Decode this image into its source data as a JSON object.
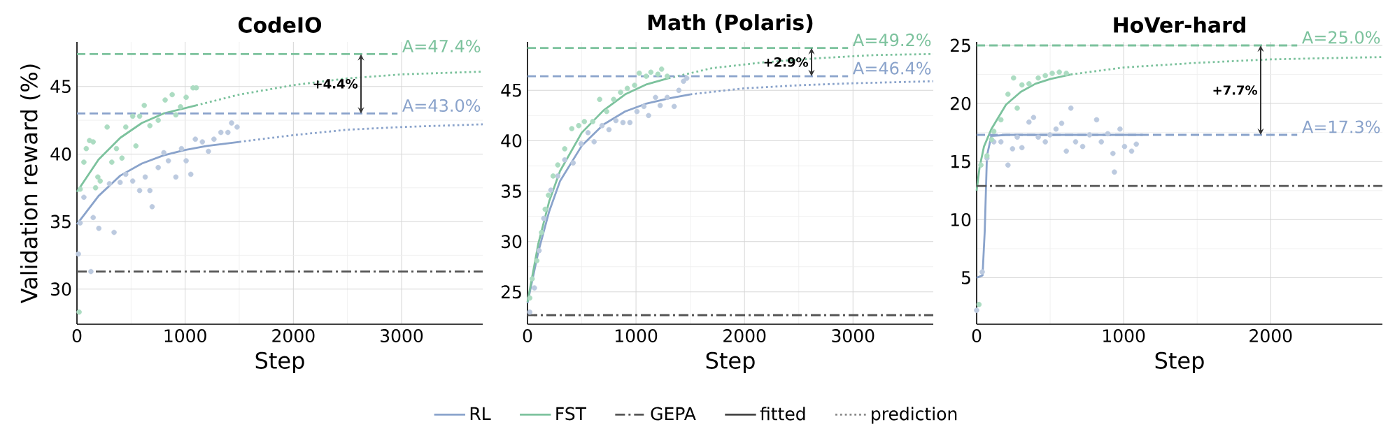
{
  "chart_data": [
    {
      "type": "scatter",
      "title": "CodeIO",
      "xlabel": "Step",
      "ylabel": "Validation reward (%)",
      "xlim": [
        0,
        3750
      ],
      "ylim": [
        27.4,
        48.3
      ],
      "xticks": [
        0,
        1000,
        2000,
        3000
      ],
      "yticks": [
        30,
        35,
        40,
        45
      ],
      "grid": true,
      "legend": "bottom",
      "series": [
        {
          "type": "scatter",
          "marker": "circle",
          "color": "#bccadf",
          "x": [
            13,
            30,
            64,
            129,
            150,
            202,
            300,
            343,
            399,
            451,
            515,
            579,
            631,
            674,
            695,
            751,
            803,
            845,
            914,
            966,
            1009,
            1052,
            1094,
            1159,
            1215,
            1266,
            1330,
            1395,
            1429,
            1480
          ],
          "values": [
            32.6,
            34.9,
            36.8,
            31.3,
            35.3,
            34.5,
            37.8,
            34.2,
            37.9,
            38.5,
            38.0,
            37.3,
            38.3,
            37.3,
            36.1,
            39.0,
            40.1,
            39.5,
            38.3,
            40.4,
            39.5,
            38.5,
            41.1,
            40.9,
            40.2,
            41.1,
            41.6,
            41.6,
            42.3,
            42.0
          ]
        },
        {
          "type": "scatter",
          "marker": "circle",
          "color": "#acdcc2",
          "x": [
            20,
            30,
            64,
            86,
            116,
            150,
            172,
            193,
            215,
            279,
            322,
            365,
            416,
            451,
            515,
            545,
            579,
            622,
            674,
            751,
            815,
            880,
            914,
            957,
            1009,
            1073,
            1103
          ],
          "values": [
            28.3,
            37.4,
            39.4,
            40.4,
            41.0,
            40.9,
            37.5,
            38.3,
            38.0,
            42.0,
            39.4,
            40.4,
            39.7,
            42.0,
            42.8,
            40.6,
            42.8,
            43.6,
            42.1,
            42.5,
            44.0,
            44.4,
            42.9,
            43.5,
            44.2,
            44.9,
            44.9
          ]
        },
        {
          "type": "line",
          "name": "RL",
          "marker": "none",
          "line_style": "solid",
          "color": "#8aa3cb",
          "x": [
            0,
            200,
            400,
            600,
            800,
            1000,
            1200,
            1500
          ],
          "values": [
            34.8,
            36.9,
            38.4,
            39.3,
            39.9,
            40.3,
            40.6,
            40.9
          ]
        },
        {
          "type": "line",
          "name": "FST",
          "marker": "none",
          "line_style": "solid",
          "color": "#7cc29d",
          "x": [
            0,
            200,
            400,
            600,
            800,
            1100
          ],
          "values": [
            37.2,
            39.6,
            41.2,
            42.3,
            43.0,
            43.6
          ]
        },
        {
          "type": "line",
          "marker": "none",
          "line_style": "dotted",
          "color": "#8aa3cb",
          "x": [
            1500,
            2000,
            2500,
            3000,
            3750
          ],
          "values": [
            40.9,
            41.4,
            41.8,
            42.0,
            42.2
          ]
        },
        {
          "type": "line",
          "marker": "none",
          "line_style": "dotted",
          "color": "#7cc29d",
          "x": [
            1100,
            1500,
            2000,
            2500,
            3000,
            3750
          ],
          "values": [
            43.6,
            44.4,
            45.1,
            45.6,
            45.9,
            46.1
          ]
        },
        {
          "type": "line",
          "name": "GEPA",
          "marker": "none",
          "line_style": "dashdot",
          "color": "#555555",
          "x": [
            0,
            3750
          ],
          "values": [
            31.3,
            31.3
          ]
        },
        {
          "type": "line",
          "name": "fitted",
          "marker": "none",
          "line_style": "solid",
          "color": "#444444"
        },
        {
          "type": "line",
          "name": "prediction",
          "marker": "none",
          "line_style": "dotted",
          "color": "#888888"
        }
      ],
      "ref_lines": [
        {
          "axis": "y",
          "value": 47.4,
          "label": "A=47.4%",
          "color": "#7cc29d",
          "line_style": "dashed"
        },
        {
          "axis": "y",
          "value": 43.0,
          "label": "A=43.0%",
          "color": "#8aa3cb",
          "line_style": "dashed"
        }
      ],
      "annotations": [
        "+4.4%"
      ]
    },
    {
      "type": "scatter",
      "title": "Math (Polaris)",
      "xlabel": "Step",
      "xlim": [
        0,
        3740
      ],
      "ylim": [
        21.8,
        49.8
      ],
      "xticks": [
        0,
        1000,
        2000,
        3000
      ],
      "yticks": [
        25,
        30,
        35,
        40,
        45
      ],
      "grid": true,
      "series": [
        {
          "type": "scatter",
          "marker": "circle",
          "color": "#bccadf",
          "x": [
            21,
            64,
            107,
            150,
            215,
            279,
            343,
            421,
            494,
            558,
            614,
            687,
            751,
            815,
            880,
            944,
            1009,
            1073,
            1116,
            1180,
            1223,
            1288,
            1352,
            1395,
            1438,
            1468
          ],
          "values": [
            23.0,
            25.4,
            29.1,
            32.3,
            35.1,
            36.5,
            38.1,
            37.8,
            39.7,
            40.8,
            39.9,
            41.5,
            41.1,
            42.0,
            41.8,
            41.8,
            42.9,
            43.4,
            42.5,
            44.3,
            43.5,
            44.3,
            43.4,
            45.0,
            45.9,
            46.2
          ]
        },
        {
          "type": "scatter",
          "marker": "circle",
          "color": "#acdcc2",
          "x": [
            21,
            43,
            86,
            129,
            163,
            193,
            236,
            279,
            343,
            408,
            472,
            524,
            601,
            665,
            730,
            794,
            858,
            920,
            987,
            1030,
            1094,
            1137,
            1202,
            1236,
            1288
          ],
          "values": [
            24.4,
            26.3,
            28.1,
            30.9,
            33.2,
            34.6,
            36.5,
            37.6,
            39.2,
            41.2,
            41.5,
            41.9,
            41.9,
            44.1,
            42.9,
            44.1,
            44.8,
            45.2,
            45.5,
            46.7,
            46.4,
            46.8,
            46.6,
            47.1,
            46.4
          ]
        },
        {
          "type": "line",
          "marker": "none",
          "line_style": "solid",
          "color": "#8aa3cb",
          "x": [
            0,
            100,
            200,
            300,
            500,
            700,
            900,
            1100,
            1300,
            1500
          ],
          "values": [
            23.9,
            29.0,
            33.0,
            36.0,
            39.5,
            41.6,
            42.9,
            43.7,
            44.2,
            44.6
          ]
        },
        {
          "type": "line",
          "marker": "none",
          "line_style": "solid",
          "color": "#7cc29d",
          "x": [
            0,
            100,
            200,
            300,
            500,
            700,
            900,
            1100,
            1300
          ],
          "values": [
            24.0,
            29.8,
            34.0,
            37.0,
            40.8,
            43.0,
            44.6,
            45.6,
            46.2
          ]
        },
        {
          "type": "line",
          "marker": "none",
          "line_style": "dotted",
          "color": "#8aa3cb",
          "x": [
            1500,
            2000,
            2500,
            3000,
            3740
          ],
          "values": [
            44.6,
            45.2,
            45.5,
            45.7,
            45.9
          ]
        },
        {
          "type": "line",
          "marker": "none",
          "line_style": "dotted",
          "color": "#7cc29d",
          "x": [
            1300,
            1700,
            2200,
            2700,
            3200,
            3740
          ],
          "values": [
            46.2,
            47.2,
            47.8,
            48.2,
            48.5,
            48.6
          ]
        },
        {
          "type": "line",
          "marker": "none",
          "line_style": "dashdot",
          "color": "#555555",
          "x": [
            0,
            3740
          ],
          "values": [
            22.7,
            22.7
          ]
        }
      ],
      "ref_lines": [
        {
          "axis": "y",
          "value": 49.2,
          "label": "A=49.2%",
          "color": "#7cc29d",
          "line_style": "dashed"
        },
        {
          "axis": "y",
          "value": 46.4,
          "label": "A=46.4%",
          "color": "#8aa3cb",
          "line_style": "dashed"
        }
      ],
      "annotations": [
        "+2.9%"
      ]
    },
    {
      "type": "scatter",
      "title": "HoVer-hard",
      "xlabel": "Step",
      "xlim": [
        0,
        2760
      ],
      "ylim": [
        1,
        25.3
      ],
      "xticks": [
        0,
        1000,
        2000
      ],
      "yticks": [
        5,
        10,
        15,
        20,
        25
      ],
      "grid": true,
      "series": [
        {
          "type": "scatter",
          "marker": "circle",
          "color": "#bccadf",
          "x": [
            0,
            38,
            70,
            117,
            165,
            213,
            244,
            276,
            308,
            356,
            387,
            419,
            467,
            498,
            540,
            578,
            610,
            641,
            673,
            721,
            768,
            816,
            848,
            892,
            927,
            937,
            975,
            1006,
            1054,
            1086
          ],
          "values": [
            2.2,
            5.5,
            15.3,
            16.7,
            16.7,
            14.7,
            16.1,
            17.1,
            16.2,
            18.4,
            18.8,
            17.1,
            16.7,
            17.3,
            17.8,
            18.3,
            15.9,
            19.6,
            16.7,
            16.3,
            17.3,
            18.6,
            16.7,
            17.4,
            15.7,
            14.1,
            17.8,
            16.3,
            15.9,
            16.5
          ]
        },
        {
          "type": "scatter",
          "marker": "circle",
          "color": "#acdcc2",
          "x": [
            16,
            29,
            70,
            102,
            117,
            165,
            213,
            251,
            276,
            308,
            356,
            419,
            467,
            514,
            562,
            610
          ],
          "values": [
            2.7,
            14.7,
            15.5,
            16.9,
            17.6,
            18.6,
            20.8,
            22.2,
            19.6,
            21.6,
            21.7,
            22.2,
            22.4,
            22.6,
            22.7,
            22.6
          ]
        },
        {
          "type": "line",
          "marker": "none",
          "line_style": "solid",
          "color": "#8aa3cb",
          "x": [
            0,
            40,
            55,
            70,
            100,
            200,
            1130
          ],
          "values": [
            5.0,
            5.2,
            9.0,
            15.5,
            17.2,
            17.3,
            17.3
          ]
        },
        {
          "type": "line",
          "marker": "none",
          "line_style": "solid",
          "color": "#7cc29d",
          "x": [
            0,
            20,
            50,
            100,
            200,
            300,
            400,
            500,
            640
          ],
          "values": [
            12.5,
            14.5,
            16.3,
            17.8,
            19.9,
            21.0,
            21.7,
            22.1,
            22.5
          ]
        },
        {
          "type": "line",
          "marker": "none",
          "line_style": "dotted",
          "color": "#7cc29d",
          "x": [
            640,
            1000,
            1500,
            2000,
            2760
          ],
          "values": [
            22.5,
            23.1,
            23.5,
            23.8,
            24.0
          ]
        },
        {
          "type": "line",
          "marker": "none",
          "line_style": "dashdot",
          "color": "#555555",
          "x": [
            0,
            2760
          ],
          "values": [
            12.9,
            12.9
          ]
        }
      ],
      "ref_lines": [
        {
          "axis": "y",
          "value": 25.0,
          "label": "A=25.0%",
          "color": "#7cc29d",
          "line_style": "dashed"
        },
        {
          "axis": "y",
          "value": 17.3,
          "label": "A=17.3%",
          "color": "#8aa3cb",
          "line_style": "dashed"
        }
      ],
      "annotations": [
        "+7.7%"
      ]
    }
  ]
}
